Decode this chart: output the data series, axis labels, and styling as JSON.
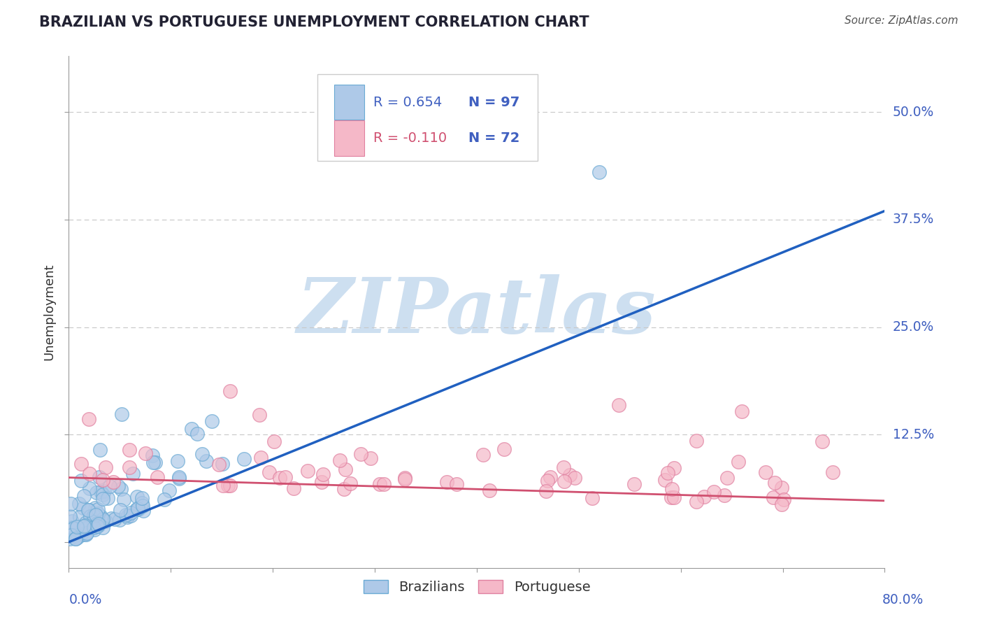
{
  "title": "BRAZILIAN VS PORTUGUESE UNEMPLOYMENT CORRELATION CHART",
  "source": "Source: ZipAtlas.com",
  "ylabel": "Unemployment",
  "yticks": [
    0.0,
    0.125,
    0.25,
    0.375,
    0.5
  ],
  "ytick_labels": [
    "",
    "12.5%",
    "25.0%",
    "37.5%",
    "50.0%"
  ],
  "xlim": [
    0.0,
    0.8
  ],
  "ylim": [
    -0.03,
    0.565
  ],
  "blue_R": 0.654,
  "blue_N": 97,
  "pink_R": -0.11,
  "pink_N": 72,
  "blue_color": "#aec9e8",
  "pink_color": "#f5b8c8",
  "blue_edge_color": "#6aaad4",
  "pink_edge_color": "#e080a0",
  "blue_line_color": "#2060c0",
  "pink_line_color": "#d05070",
  "background_color": "#ffffff",
  "watermark_color": "#cddff0",
  "grid_color": "#c8c8c8",
  "title_color": "#222233",
  "axis_label_color": "#4060c0",
  "legend_text_color": "#4060c0",
  "blue_trend_start_x": 0.0,
  "blue_trend_start_y": 0.0,
  "blue_trend_end_x": 0.8,
  "blue_trend_end_y": 0.385,
  "pink_trend_start_x": 0.0,
  "pink_trend_start_y": 0.075,
  "pink_trend_end_x": 0.8,
  "pink_trend_end_y": 0.048
}
